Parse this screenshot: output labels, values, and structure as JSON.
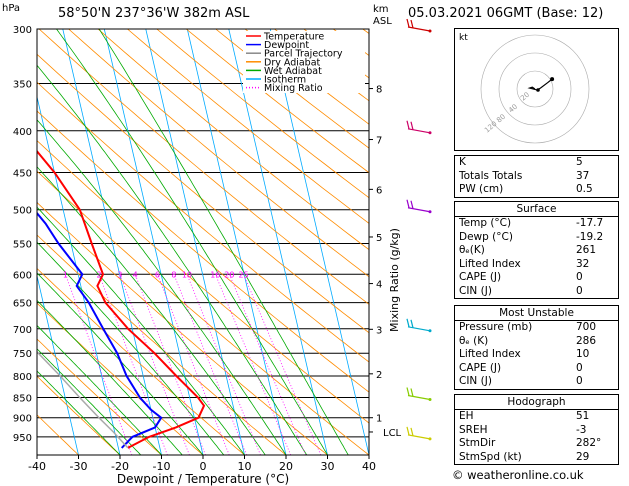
{
  "header": {
    "location": "58°50'N  237°36'W  382m  ASL",
    "pressure_unit": "hPa",
    "height_unit_top": "km",
    "height_unit_bottom": "ASL",
    "datetime": "05.03.2021  06GMT  (Base: 12)"
  },
  "chart_data": {
    "type": "line",
    "xlabel": "Dewpoint / Temperature (°C)",
    "ylabel_right": "Mixing Ratio (g/kg)",
    "xlim": [
      -40,
      40
    ],
    "ylim": [
      1000,
      300
    ],
    "pressure_ticks": [
      300,
      350,
      400,
      450,
      500,
      550,
      600,
      650,
      700,
      750,
      800,
      850,
      900,
      950
    ],
    "temp_ticks": [
      -40,
      -30,
      -20,
      -10,
      0,
      10,
      20,
      30,
      40
    ],
    "km_ticks": [
      {
        "label": "8",
        "p": 355
      },
      {
        "label": "7",
        "p": 410
      },
      {
        "label": "6",
        "p": 472
      },
      {
        "label": "5",
        "p": 540
      },
      {
        "label": "4",
        "p": 616
      },
      {
        "label": "3",
        "p": 701
      },
      {
        "label": "2",
        "p": 795
      },
      {
        "label": "1",
        "p": 900
      }
    ],
    "lcl": {
      "label": "LCL",
      "p": 937
    },
    "mixing_ratio_labels": [
      "1",
      "2",
      "3",
      "4",
      "6",
      "8",
      "10",
      "16",
      "20",
      "25"
    ],
    "mixing_ratio_values": [
      1,
      2,
      3,
      4,
      6,
      8,
      10,
      16,
      20,
      25
    ],
    "legend": [
      {
        "name": "Temperature",
        "color": "#ff0000"
      },
      {
        "name": "Dewpoint",
        "color": "#0000ff"
      },
      {
        "name": "Parcel Trajectory",
        "color": "#888888"
      },
      {
        "name": "Dry Adiabat",
        "color": "#ff8c00"
      },
      {
        "name": "Wet Adiabat",
        "color": "#00aa00"
      },
      {
        "name": "Isotherm",
        "color": "#00aaff"
      },
      {
        "name": "Mixing Ratio",
        "color": "#ff00ff"
      }
    ],
    "legend_placement": "top-right",
    "series": [
      {
        "name": "Temperature",
        "color": "#ff0000",
        "points": [
          [
            980,
            -17.7
          ],
          [
            950,
            -12
          ],
          [
            925,
            -5
          ],
          [
            900,
            1
          ],
          [
            870,
            3
          ],
          [
            850,
            2
          ],
          [
            800,
            -2
          ],
          [
            750,
            -6
          ],
          [
            700,
            -11
          ],
          [
            650,
            -15
          ],
          [
            620,
            -16
          ],
          [
            600,
            -14
          ],
          [
            550,
            -15
          ],
          [
            500,
            -16
          ],
          [
            450,
            -20
          ],
          [
            400,
            -26
          ],
          [
            350,
            -32
          ],
          [
            300,
            -36
          ]
        ]
      },
      {
        "name": "Dewpoint",
        "color": "#0000ff",
        "points": [
          [
            980,
            -19.2
          ],
          [
            950,
            -16
          ],
          [
            925,
            -10
          ],
          [
            900,
            -8
          ],
          [
            880,
            -10
          ],
          [
            850,
            -12
          ],
          [
            800,
            -14
          ],
          [
            750,
            -15
          ],
          [
            700,
            -17
          ],
          [
            650,
            -19
          ],
          [
            620,
            -21
          ],
          [
            600,
            -19
          ],
          [
            550,
            -23
          ],
          [
            520,
            -25
          ],
          [
            500,
            -27
          ],
          [
            490,
            -26
          ],
          [
            450,
            -31
          ],
          [
            400,
            -36
          ],
          [
            350,
            -42
          ],
          [
            300,
            -46
          ]
        ]
      },
      {
        "name": "Parcel Trajectory",
        "color": "#aaaaaa",
        "points": [
          [
            980,
            -17.7
          ],
          [
            937,
            -20.3
          ],
          [
            900,
            -23
          ],
          [
            850,
            -26.5
          ],
          [
            800,
            -30
          ],
          [
            750,
            -34
          ],
          [
            700,
            -38.5
          ],
          [
            650,
            -43
          ],
          [
            600,
            -48
          ],
          [
            550,
            -53
          ],
          [
            500,
            -59
          ]
        ]
      }
    ],
    "wind_barb_pressures": [
      300,
      400,
      500,
      700,
      850,
      950
    ]
  },
  "hodograph": {
    "unit_label": "kt",
    "ring_labels": [
      "20",
      "40"
    ],
    "ring_labels_second": [
      "80",
      "120"
    ],
    "trace": [
      [
        0,
        0
      ],
      [
        -3,
        2
      ],
      [
        -6,
        1
      ],
      [
        2,
        -1
      ],
      [
        6,
        1
      ],
      [
        14,
        7
      ],
      [
        19,
        11
      ]
    ]
  },
  "indices": {
    "rows": [
      {
        "label": "K",
        "value": "5"
      },
      {
        "label": "Totals Totals",
        "value": "37"
      },
      {
        "label": "PW (cm)",
        "value": "0.5"
      }
    ]
  },
  "surface": {
    "title": "Surface",
    "rows": [
      {
        "label": "Temp (°C)",
        "value": "-17.7"
      },
      {
        "label": "Dewp (°C)",
        "value": "-19.2"
      },
      {
        "label": "θₑ(K)",
        "value": "261"
      },
      {
        "label": "Lifted Index",
        "value": "32"
      },
      {
        "label": "CAPE (J)",
        "value": "0"
      },
      {
        "label": "CIN (J)",
        "value": "0"
      }
    ]
  },
  "most_unstable": {
    "title": "Most Unstable",
    "rows": [
      {
        "label": "Pressure (mb)",
        "value": "700"
      },
      {
        "label": "θₑ (K)",
        "value": "286"
      },
      {
        "label": "Lifted Index",
        "value": "10"
      },
      {
        "label": "CAPE (J)",
        "value": "0"
      },
      {
        "label": "CIN (J)",
        "value": "0"
      }
    ]
  },
  "hodo_table": {
    "title": "Hodograph",
    "rows": [
      {
        "label": "EH",
        "value": "51"
      },
      {
        "label": "SREH",
        "value": "-3"
      },
      {
        "label": "StmDir",
        "value": "282°"
      },
      {
        "label": "StmSpd (kt)",
        "value": "29"
      }
    ]
  },
  "credit": "© weatheronline.co.uk"
}
